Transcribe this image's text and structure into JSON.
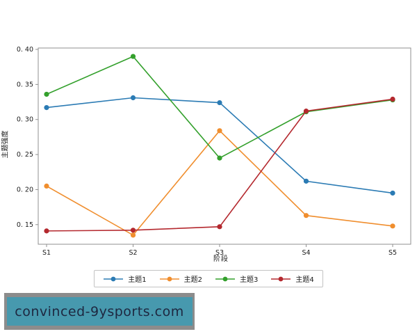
{
  "chart_data": {
    "type": "line",
    "title": "",
    "xlabel": "阶段",
    "ylabel": "主题强度",
    "categories": [
      "S1",
      "S2",
      "S3",
      "S4",
      "S5"
    ],
    "series": [
      {
        "name": "主题1",
        "color": "#2b7bb4",
        "values": [
          0.317,
          0.331,
          0.324,
          0.212,
          0.195
        ]
      },
      {
        "name": "主题2",
        "color": "#f08e2e",
        "values": [
          0.205,
          0.135,
          0.284,
          0.163,
          0.148
        ]
      },
      {
        "name": "主题3",
        "color": "#33a02c",
        "values": [
          0.336,
          0.39,
          0.245,
          0.311,
          0.328
        ]
      },
      {
        "name": "主题4",
        "color": "#b4282e",
        "values": [
          0.141,
          0.142,
          0.147,
          0.312,
          0.329
        ]
      }
    ],
    "ytick_values": [
      0.4,
      0.35,
      0.3,
      0.25,
      0.2,
      0.15
    ],
    "ytick_labels": [
      "0. 40",
      "0. 35",
      "0. 30",
      "0. 25",
      "0. 20",
      "0. 15"
    ],
    "ylim": [
      0.122,
      0.402
    ],
    "grid": false,
    "legend_position": "bottom",
    "frame_color": "#8f8f8f",
    "marker": "circle"
  },
  "watermark": {
    "text": "convinced-9ysports.com",
    "band_color": "#8c8c8c",
    "box_color": "#4799ae",
    "text_color": "#1e2740"
  }
}
